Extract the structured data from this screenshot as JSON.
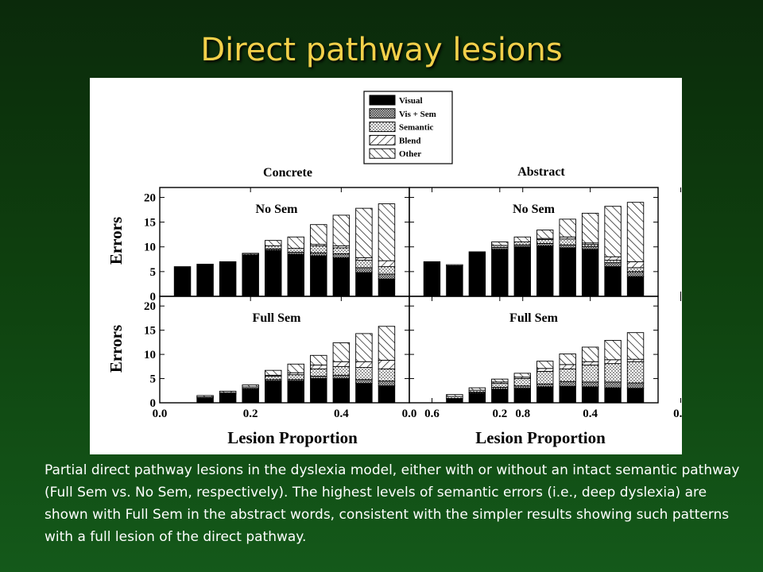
{
  "slide": {
    "title": "Direct pathway lesions",
    "caption": "Partial direct pathway lesions in the dyslexia model, either with or without an intact semantic pathway (Full Sem vs. No Sem, respectively). The highest levels of semantic errors (i.e., deep dyslexia) are shown with Full Sem in the abstract words, consistent with the simpler results showing such patterns with a full lesion of the direct pathway."
  },
  "chart_data": {
    "type": "bar",
    "stacked": true,
    "xlabel": "Lesion Proportion",
    "ylabel": "Errors",
    "ylim": [
      0,
      22
    ],
    "yticks": [
      0,
      5,
      10,
      15,
      20
    ],
    "xticks": [
      "0.0",
      "0.2",
      "0.4",
      "0.6",
      "0.8"
    ],
    "x": [
      0.05,
      0.1,
      0.15,
      0.2,
      0.25,
      0.3,
      0.35,
      0.4,
      0.45,
      0.5
    ],
    "column_titles": [
      "Concrete",
      "Abstract"
    ],
    "row_titles": [
      "No Sem",
      "Full Sem"
    ],
    "legend": {
      "position": "top-center",
      "entries": [
        {
          "name": "Visual",
          "pattern": "solid-black"
        },
        {
          "name": "Vis + Sem",
          "pattern": "dense-gray"
        },
        {
          "name": "Semantic",
          "pattern": "dots"
        },
        {
          "name": "Blend",
          "pattern": "diagonal-forward"
        },
        {
          "name": "Other",
          "pattern": "diagonal-back"
        }
      ]
    },
    "panels": [
      {
        "row": "No Sem",
        "column": "Concrete",
        "series": [
          {
            "name": "Visual",
            "values": [
              6.0,
              6.5,
              7.0,
              8.3,
              9.3,
              8.5,
              8.2,
              7.8,
              4.8,
              3.5
            ]
          },
          {
            "name": "Vis + Sem",
            "values": [
              0,
              0,
              0,
              0,
              0.3,
              0.4,
              0.6,
              0.8,
              1.0,
              1.0
            ]
          },
          {
            "name": "Semantic",
            "values": [
              0,
              0,
              0,
              0.2,
              0.6,
              0.8,
              1.4,
              1.2,
              1.5,
              1.5
            ]
          },
          {
            "name": "Blend",
            "values": [
              0,
              0,
              0,
              0,
              0,
              0,
              0.3,
              0.4,
              0.5,
              1.2
            ]
          },
          {
            "name": "Other",
            "values": [
              0,
              0,
              0,
              0.2,
              1.1,
              2.3,
              4.0,
              6.2,
              10.0,
              11.5
            ]
          }
        ]
      },
      {
        "row": "No Sem",
        "column": "Abstract",
        "series": [
          {
            "name": "Visual",
            "values": [
              7.0,
              6.2,
              9.0,
              9.5,
              10.0,
              10.2,
              9.8,
              9.5,
              6.0,
              4.0
            ]
          },
          {
            "name": "Vis + Sem",
            "values": [
              0,
              0,
              0,
              0.4,
              0.4,
              0.5,
              0.6,
              0.6,
              0.8,
              1.0
            ]
          },
          {
            "name": "Semantic",
            "values": [
              0,
              0.2,
              0,
              0.4,
              0.6,
              0.8,
              1.2,
              0.4,
              0.5,
              0.8
            ]
          },
          {
            "name": "Blend",
            "values": [
              0,
              0,
              0,
              0,
              0,
              0.2,
              0.4,
              0.3,
              0.7,
              1.2
            ]
          },
          {
            "name": "Other",
            "values": [
              0,
              0,
              0,
              0.7,
              1.0,
              1.7,
              3.6,
              6.0,
              10.2,
              12.0
            ]
          }
        ]
      },
      {
        "row": "Full Sem",
        "column": "Concrete",
        "series": [
          {
            "name": "Visual",
            "values": [
              0,
              1.0,
              1.8,
              2.8,
              4.5,
              4.5,
              5.0,
              5.0,
              4.0,
              3.5
            ]
          },
          {
            "name": "Vis + Sem",
            "values": [
              0,
              0,
              0.1,
              0.2,
              0.3,
              0.3,
              0.5,
              0.7,
              0.8,
              1.0
            ]
          },
          {
            "name": "Semantic",
            "values": [
              0,
              0.2,
              0.2,
              0.3,
              0.7,
              1.0,
              1.5,
              1.8,
              2.5,
              2.5
            ]
          },
          {
            "name": "Blend",
            "values": [
              0,
              0,
              0,
              0,
              0.2,
              0.4,
              0.8,
              1.0,
              1.2,
              1.8
            ]
          },
          {
            "name": "Other",
            "values": [
              0,
              0.3,
              0.3,
              0.4,
              1.0,
              1.8,
              2.0,
              3.9,
              5.8,
              7.0
            ]
          }
        ]
      },
      {
        "row": "Full Sem",
        "column": "Abstract",
        "series": [
          {
            "name": "Visual",
            "values": [
              0,
              0.8,
              2.0,
              2.8,
              3.0,
              3.3,
              3.4,
              3.3,
              3.1,
              3.0
            ]
          },
          {
            "name": "Vis + Sem",
            "values": [
              0,
              0.1,
              0.2,
              0.4,
              0.5,
              0.6,
              1.0,
              1.0,
              1.2,
              1.1
            ]
          },
          {
            "name": "Semantic",
            "values": [
              0,
              0.4,
              0.4,
              0.8,
              1.5,
              2.6,
              2.6,
              3.5,
              3.8,
              4.4
            ]
          },
          {
            "name": "Blend",
            "values": [
              0,
              0,
              0,
              0.3,
              0.3,
              0.6,
              0.9,
              0.7,
              0.8,
              0.5
            ]
          },
          {
            "name": "Other",
            "values": [
              0,
              0.4,
              0.5,
              0.6,
              0.8,
              1.5,
              2.2,
              3.0,
              4.0,
              5.5
            ]
          }
        ]
      }
    ]
  }
}
